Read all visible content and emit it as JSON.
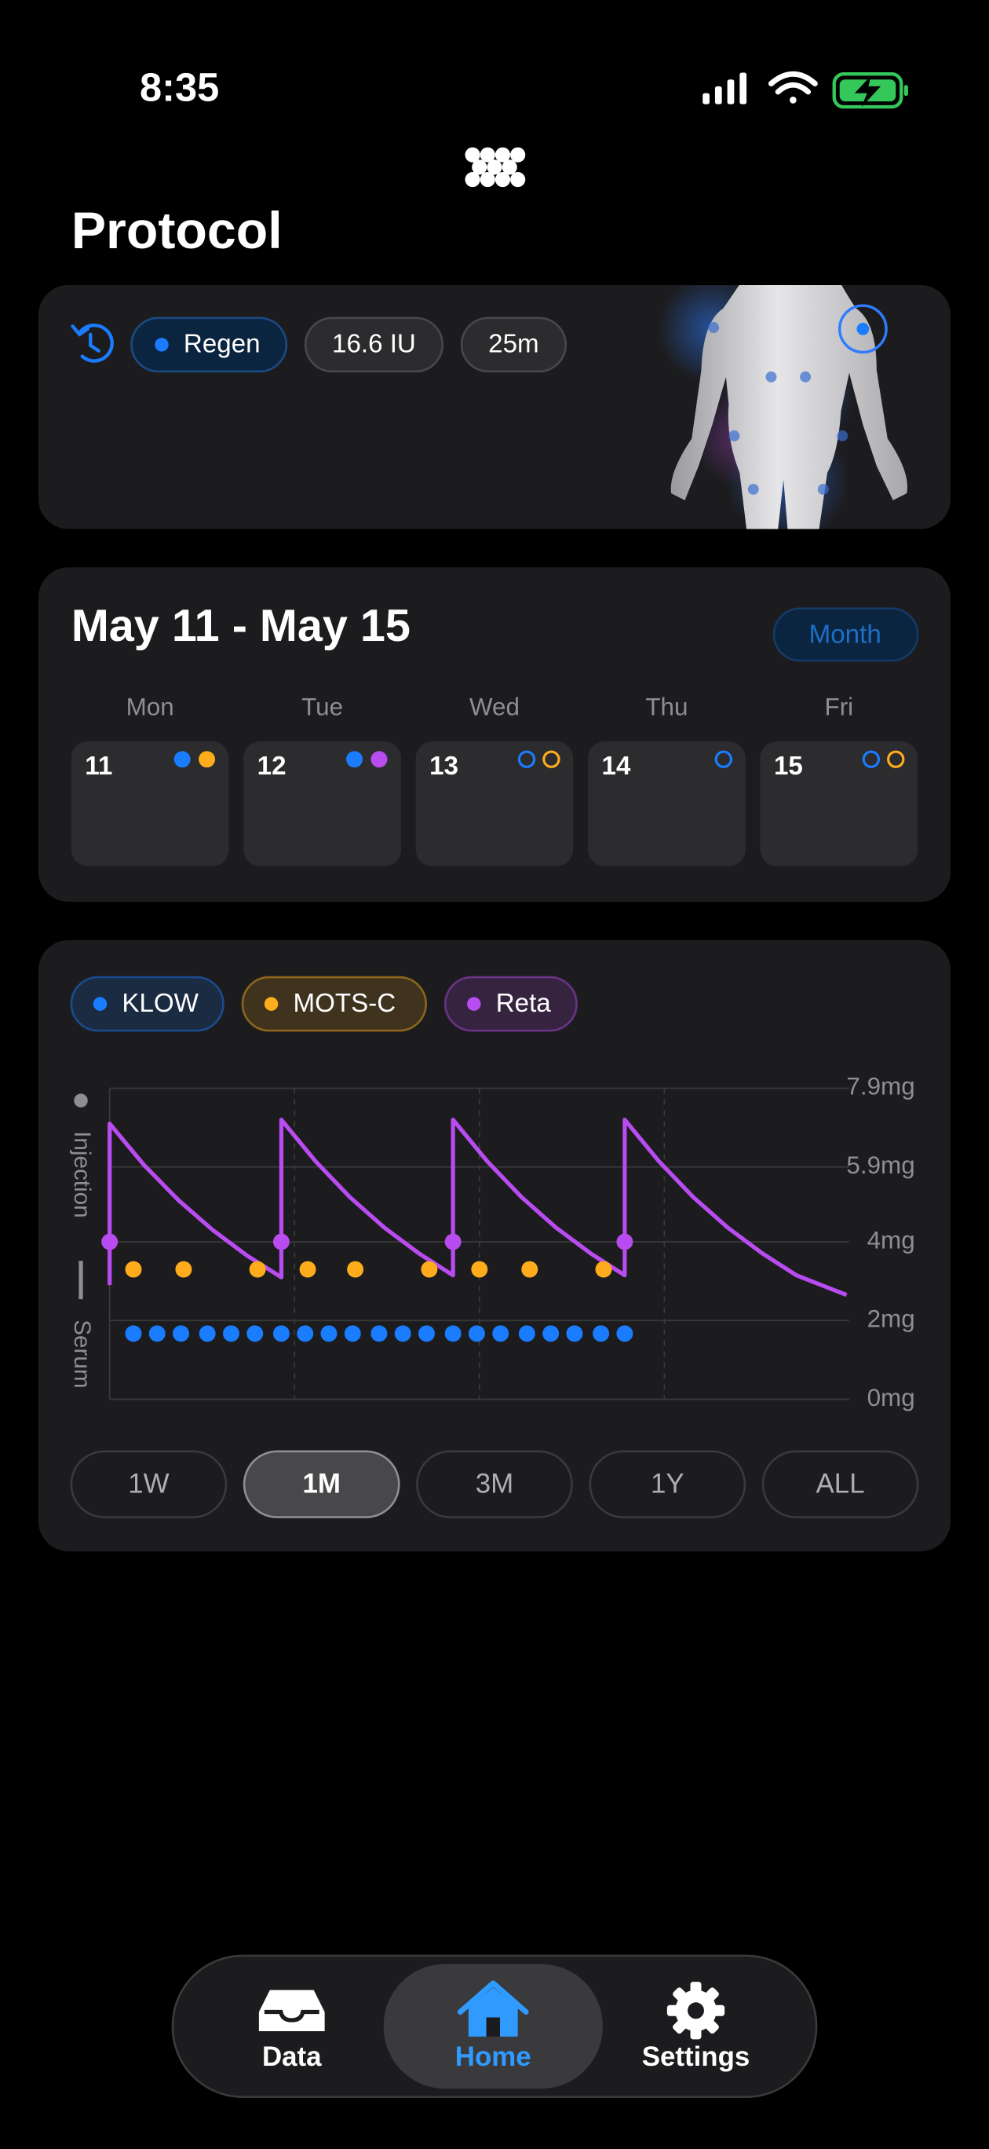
{
  "status_bar": {
    "time": "8:35"
  },
  "header": {
    "title": "Protocol"
  },
  "protocol_card": {
    "chips": [
      {
        "label": "Regen",
        "color": "#1a7cff",
        "dot": true
      },
      {
        "label": "16.6 IU"
      },
      {
        "label": "25m"
      }
    ]
  },
  "calendar": {
    "range": "May 11 - May 15",
    "view_button": "Month",
    "days": [
      {
        "weekday": "Mon",
        "date": "11",
        "markers": [
          {
            "color": "#1a7cff",
            "filled": true
          },
          {
            "color": "#ffac1c",
            "filled": true
          }
        ]
      },
      {
        "weekday": "Tue",
        "date": "12",
        "markers": [
          {
            "color": "#1a7cff",
            "filled": true
          },
          {
            "color": "#b84cf0",
            "filled": true
          }
        ]
      },
      {
        "weekday": "Wed",
        "date": "13",
        "markers": [
          {
            "color": "#1a7cff",
            "filled": false
          },
          {
            "color": "#ffac1c",
            "filled": false
          }
        ]
      },
      {
        "weekday": "Thu",
        "date": "14",
        "markers": [
          {
            "color": "#1a7cff",
            "filled": false
          }
        ]
      },
      {
        "weekday": "Fri",
        "date": "15",
        "markers": [
          {
            "color": "#1a7cff",
            "filled": false
          },
          {
            "color": "#ffac1c",
            "filled": false
          }
        ]
      }
    ]
  },
  "chart_data": {
    "type": "line",
    "injection_label": "Injection",
    "serum_label": "Serum",
    "xlim": [
      0,
      28
    ],
    "ylim": [
      0,
      7.9
    ],
    "grid": true,
    "yticks": [
      {
        "value": 0,
        "label": "0mg"
      },
      {
        "value": 2,
        "label": "2mg"
      },
      {
        "value": 4,
        "label": "4mg"
      },
      {
        "value": 5.9,
        "label": "5.9mg"
      },
      {
        "value": 7.9,
        "label": "7.9mg"
      }
    ],
    "series": [
      {
        "name": "KLOW",
        "type": "scatter",
        "color": "#1a7cff",
        "x": [
          0.9,
          1.8,
          2.7,
          3.7,
          4.6,
          5.5,
          6.5,
          7.4,
          8.3,
          9.2,
          10.2,
          11.1,
          12.0,
          13.0,
          13.9,
          14.8,
          15.8,
          16.7,
          17.6,
          18.6,
          19.5
        ],
        "values": [
          1.67,
          1.67,
          1.67,
          1.67,
          1.67,
          1.67,
          1.67,
          1.67,
          1.67,
          1.67,
          1.67,
          1.67,
          1.67,
          1.67,
          1.67,
          1.67,
          1.67,
          1.67,
          1.67,
          1.67,
          1.67
        ]
      },
      {
        "name": "MOTS-C",
        "type": "scatter",
        "color": "#ffac1c",
        "x": [
          0.9,
          2.8,
          5.6,
          7.5,
          9.3,
          12.1,
          14.0,
          15.9,
          18.7
        ],
        "values": [
          3.3,
          3.3,
          3.3,
          3.3,
          3.3,
          3.3,
          3.3,
          3.3,
          3.3
        ]
      },
      {
        "name": "Reta",
        "type": "line",
        "color": "#b84cf0",
        "x": [
          0,
          0,
          1.3,
          2.6,
          3.9,
          5.2,
          6.5,
          6.5,
          7.8,
          9.1,
          10.4,
          11.7,
          13,
          13,
          14.3,
          15.6,
          16.9,
          18.2,
          19.5,
          19.5,
          20.8,
          22.1,
          23.4,
          24.7,
          26,
          27.9
        ],
        "values": [
          2.9,
          7.0,
          5.95,
          5.06,
          4.3,
          3.65,
          3.1,
          7.1,
          6.04,
          5.13,
          4.36,
          3.71,
          3.15,
          7.1,
          6.04,
          5.13,
          4.36,
          3.71,
          3.15,
          7.1,
          6.04,
          5.13,
          4.36,
          3.71,
          3.15,
          2.65
        ],
        "markers": {
          "x": [
            0,
            6.5,
            13,
            19.5
          ],
          "values": [
            4.0,
            4.0,
            4.0,
            4.0
          ]
        }
      }
    ]
  },
  "range_selector": {
    "options": [
      "1W",
      "1M",
      "3M",
      "1Y",
      "ALL"
    ],
    "selected": 1
  },
  "tab_bar": {
    "tabs": [
      "Data",
      "Home",
      "Settings"
    ],
    "active": 1
  }
}
